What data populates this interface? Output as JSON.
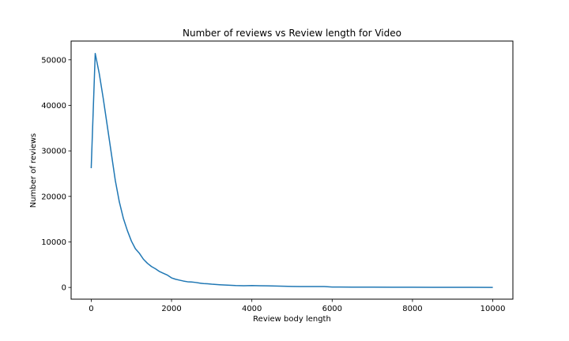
{
  "chart_data": {
    "type": "line",
    "title": "Number of reviews vs Review length for Video",
    "xlabel": "Review body length",
    "ylabel": "Number of reviews",
    "xlim": [
      -500,
      10500
    ],
    "ylim": [
      -2575,
      54125
    ],
    "xticks": [
      0,
      2000,
      4000,
      6000,
      8000,
      10000
    ],
    "yticks": [
      0,
      10000,
      20000,
      30000,
      40000,
      50000
    ],
    "xtick_labels": [
      "0",
      "2000",
      "4000",
      "6000",
      "8000",
      "10000"
    ],
    "ytick_labels": [
      "0",
      "10000",
      "20000",
      "30000",
      "40000",
      "50000"
    ],
    "grid": false,
    "legend": "none",
    "colors": {
      "line": "#1f77b4"
    },
    "series": [
      {
        "x": [
          0,
          100,
          200,
          300,
          400,
          500,
          600,
          700,
          800,
          900,
          1000,
          1100,
          1200,
          1300,
          1400,
          1500,
          1600,
          1700,
          1800,
          1900,
          2000,
          2100,
          2200,
          2300,
          2400,
          2500,
          2600,
          2700,
          2800,
          2900,
          3000,
          3200,
          3400,
          3600,
          3800,
          4000,
          4200,
          4400,
          4600,
          4800,
          5000,
          5200,
          5400,
          5600,
          5800,
          6000,
          6200,
          6500,
          7000,
          7500,
          8000,
          8500,
          9000,
          9500,
          10000
        ],
        "values": [
          26200,
          51400,
          47000,
          41500,
          35500,
          29500,
          23500,
          18800,
          15200,
          12500,
          10200,
          8500,
          7500,
          6200,
          5300,
          4600,
          4100,
          3500,
          3100,
          2700,
          2100,
          1800,
          1600,
          1400,
          1250,
          1200,
          1100,
          950,
          850,
          800,
          720,
          600,
          500,
          420,
          380,
          420,
          380,
          350,
          300,
          260,
          230,
          210,
          200,
          190,
          200,
          100,
          90,
          80,
          60,
          50,
          40,
          30,
          25,
          20,
          10
        ]
      }
    ]
  }
}
